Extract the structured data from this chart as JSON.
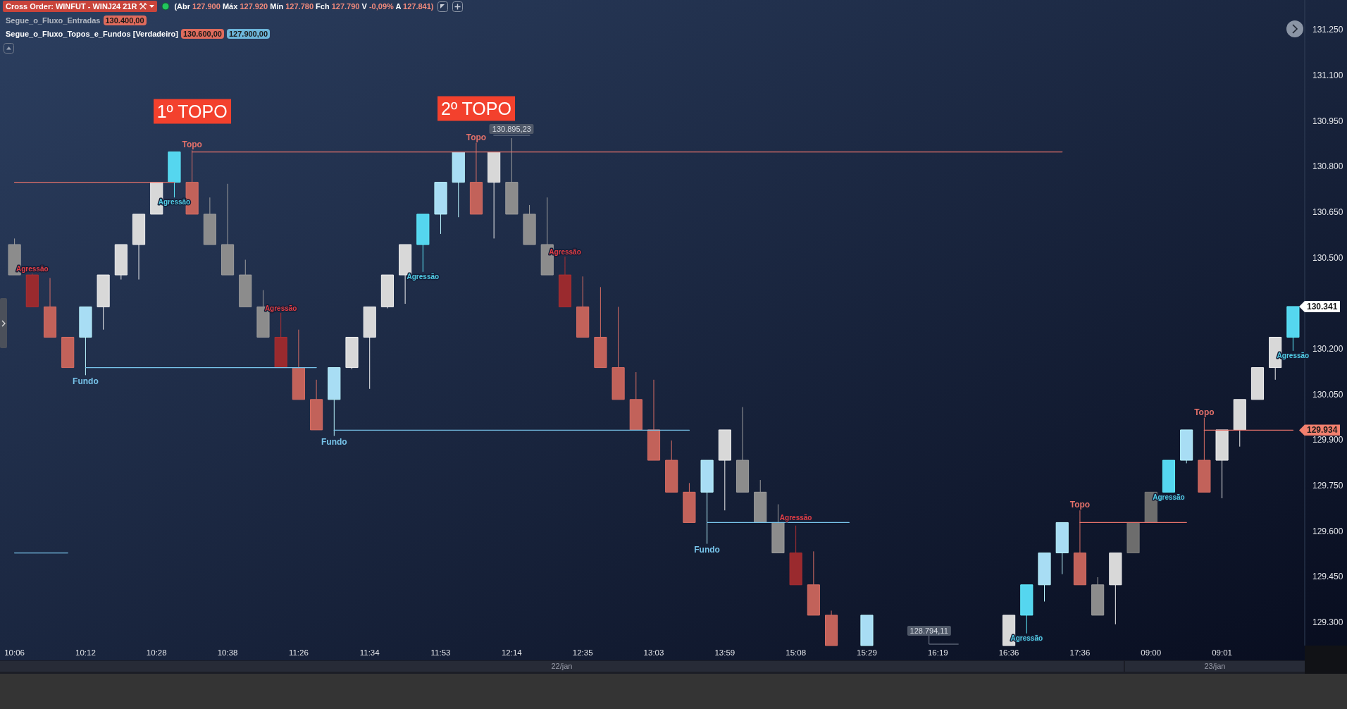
{
  "chart_data": {
    "type": "candlestick",
    "title": "Cross Order: WINFUT - WINJ24 21R",
    "subtitle": "(Abr 127.900 Máx 127.920 Mín 127.780 Fch 127.790 V -0,09% A 127.841)",
    "categories": [
      "10:06",
      null,
      null,
      null,
      "10:12",
      null,
      null,
      null,
      "10:28",
      null,
      null,
      null,
      "10:38",
      null,
      null,
      null,
      "11:26",
      null,
      null,
      null,
      "11:34",
      null,
      null,
      null,
      "11:53",
      null,
      null,
      null,
      "12:14",
      null,
      null,
      null,
      "12:35",
      null,
      null,
      null,
      "13:03",
      null,
      null,
      null,
      "13:59",
      null,
      null,
      null,
      "15:08",
      null,
      null,
      null,
      "15:29",
      null,
      null,
      null,
      "16:19",
      null,
      null,
      null,
      "16:36",
      null,
      null,
      null,
      "17:36",
      null,
      null,
      null,
      "09:00",
      null,
      null,
      null,
      "09:01",
      null,
      null,
      null,
      null
    ],
    "ohlc": [
      [
        130545,
        130565,
        130445,
        130445
      ],
      [
        130445,
        130450,
        130340,
        130340
      ],
      [
        130340,
        130435,
        130240,
        130240
      ],
      [
        130240,
        130240,
        130140,
        130140
      ],
      [
        130240,
        130340,
        130115,
        130340
      ],
      [
        130340,
        130445,
        130265,
        130445
      ],
      [
        130445,
        130545,
        130430,
        130545
      ],
      [
        130545,
        130645,
        130430,
        130645
      ],
      [
        130645,
        130750,
        130645,
        130750
      ],
      [
        130750,
        130850,
        130700,
        130850
      ],
      [
        130750,
        130855,
        130645,
        130645
      ],
      [
        130645,
        130700,
        130545,
        130545
      ],
      [
        130545,
        130745,
        130445,
        130445
      ],
      [
        130445,
        130495,
        130340,
        130340
      ],
      [
        130340,
        130395,
        130240,
        130240
      ],
      [
        130240,
        130320,
        130140,
        130140
      ],
      [
        130140,
        130265,
        130035,
        130035
      ],
      [
        130035,
        130100,
        129935,
        129935
      ],
      [
        130035,
        130140,
        129915,
        130140
      ],
      [
        130140,
        130240,
        130135,
        130240
      ],
      [
        130240,
        130340,
        130070,
        130340
      ],
      [
        130340,
        130445,
        130335,
        130445
      ],
      [
        130445,
        130545,
        130350,
        130545
      ],
      [
        130545,
        130645,
        130455,
        130645
      ],
      [
        130645,
        130750,
        130580,
        130750
      ],
      [
        130750,
        130850,
        130635,
        130850
      ],
      [
        130750,
        130880,
        130645,
        130645
      ],
      [
        130750,
        130850,
        130565,
        130850
      ],
      [
        130750,
        130895.23,
        130645,
        130645
      ],
      [
        130645,
        130675,
        130545,
        130545
      ],
      [
        130545,
        130700,
        130445,
        130445
      ],
      [
        130445,
        130505,
        130340,
        130340
      ],
      [
        130340,
        130440,
        130240,
        130240
      ],
      [
        130240,
        130405,
        130140,
        130140
      ],
      [
        130140,
        130340,
        130035,
        130035
      ],
      [
        130035,
        130125,
        129935,
        129935
      ],
      [
        129935,
        130100,
        129835,
        129835
      ],
      [
        129835,
        129900,
        129730,
        129730
      ],
      [
        129730,
        129760,
        129630,
        129630
      ],
      [
        129730,
        129835,
        129560,
        129835
      ],
      [
        129835,
        129935,
        129670,
        129935
      ],
      [
        129835,
        130010,
        129730,
        129730
      ],
      [
        129730,
        129770,
        129630,
        129630
      ],
      [
        129630,
        129690,
        129530,
        129530
      ],
      [
        129530,
        129620,
        129425,
        129425
      ],
      [
        129425,
        129535,
        129325,
        129325
      ],
      [
        129325,
        129340,
        129225,
        129225
      ],
      null,
      [
        129225,
        129325,
        129225,
        129325
      ],
      null,
      null,
      null,
      null,
      null,
      null,
      null,
      [
        129225,
        129325,
        129225,
        129325
      ],
      [
        129325,
        129425,
        129265,
        129425
      ],
      [
        129425,
        129530,
        129370,
        129530
      ],
      [
        129530,
        129630,
        129460,
        129630
      ],
      [
        129530,
        129670,
        129425,
        129425
      ],
      [
        129425,
        129450,
        129325,
        129325
      ],
      [
        129425,
        129530,
        129295,
        129530
      ],
      [
        129530,
        129630,
        129530,
        129630
      ],
      [
        129630,
        129730,
        129630,
        129730
      ],
      [
        129730,
        129835,
        129730,
        129835
      ],
      [
        129835,
        129935,
        129825,
        129935
      ],
      [
        129835,
        129975,
        129730,
        129730
      ],
      [
        129835,
        129935,
        129710,
        129935
      ],
      [
        129935,
        130035,
        129880,
        130035
      ],
      [
        130035,
        130140,
        130035,
        130140
      ],
      [
        130140,
        130240,
        130100,
        130240
      ],
      [
        130240,
        130341,
        130195,
        130341
      ]
    ],
    "colors": [
      "#8c8c8c",
      "#9a2a2e",
      "#c2625a",
      "#c2625a",
      "#a8ddf4",
      "#d8d8d8",
      "#d8d8d8",
      "#d8d8d8",
      "#d8d8d8",
      "#55d6ef",
      "#c2625a",
      "#8c8c8c",
      "#8c8c8c",
      "#8c8c8c",
      "#8c8c8c",
      "#9a2a2e",
      "#c2625a",
      "#c2625a",
      "#a8ddf4",
      "#d8d8d8",
      "#d8d8d8",
      "#d8d8d8",
      "#d8d8d8",
      "#55d6ef",
      "#a8ddf4",
      "#a8ddf4",
      "#c2625a",
      "#d8d8d8",
      "#8c8c8c",
      "#8c8c8c",
      "#8c8c8c",
      "#9a2a2e",
      "#c2625a",
      "#c2625a",
      "#c2625a",
      "#c2625a",
      "#c2625a",
      "#c2625a",
      "#c2625a",
      "#a8ddf4",
      "#d8d8d8",
      "#8c8c8c",
      "#8c8c8c",
      "#8c8c8c",
      "#9a2a2e",
      "#c2625a",
      "#c2625a",
      null,
      "#a8ddf4",
      null,
      null,
      null,
      null,
      null,
      null,
      null,
      "#d8d8d8",
      "#55d6ef",
      "#a8ddf4",
      "#a8ddf4",
      "#c2625a",
      "#8c8c8c",
      "#d8d8d8",
      "#6d6d6d",
      "#6d6d6d",
      "#55d6ef",
      "#a8ddf4",
      "#c2625a",
      "#d8d8d8",
      "#d8d8d8",
      "#d8d8d8",
      "#d8d8d8",
      "#55d6ef"
    ],
    "value_labels": [
      null,
      "Agressão",
      null,
      null,
      null,
      null,
      null,
      null,
      null,
      "Agressão",
      null,
      null,
      null,
      null,
      null,
      "Agressão",
      null,
      null,
      null,
      null,
      null,
      null,
      null,
      "Agressão",
      null,
      null,
      null,
      null,
      null,
      null,
      null,
      "Agressão",
      null,
      null,
      null,
      null,
      null,
      null,
      null,
      null,
      null,
      null,
      null,
      null,
      "Agressão",
      null,
      null,
      null,
      null,
      null,
      null,
      null,
      null,
      null,
      null,
      null,
      null,
      "Agressão",
      null,
      null,
      null,
      null,
      null,
      null,
      null,
      "Agressão",
      null,
      null,
      null,
      null,
      null,
      null,
      "Agressão"
    ],
    "series": [
      {
        "type": "line",
        "color": "#e4716a",
        "values": [
          130750,
          130750,
          130750,
          130750,
          130750,
          130750,
          130750,
          130750,
          130750,
          130750,
          null,
          null,
          null,
          null,
          null,
          null,
          null,
          null,
          null,
          null,
          null,
          null,
          null,
          null,
          null,
          null,
          null,
          null,
          null,
          null,
          null,
          null,
          null,
          null,
          null,
          null,
          null,
          null,
          null,
          null,
          null,
          null,
          null,
          null,
          null,
          null,
          null,
          null,
          null,
          null,
          null,
          null,
          null,
          null,
          null,
          null,
          null,
          null,
          null,
          null,
          null,
          null,
          null,
          null,
          null,
          null,
          null,
          null,
          null,
          null,
          null,
          null,
          null
        ]
      },
      {
        "type": "line",
        "color": "#78c4ea",
        "values": [
          129530,
          129530,
          129530,
          129530,
          null,
          null,
          null,
          null,
          null,
          null,
          null,
          null,
          null,
          null,
          null,
          null,
          null,
          null,
          null,
          null,
          null,
          null,
          null,
          null,
          null,
          null,
          null,
          null,
          null,
          null,
          null,
          null,
          null,
          null,
          null,
          null,
          null,
          null,
          null,
          null,
          null,
          null,
          null,
          null,
          null,
          null,
          null,
          null,
          null,
          null,
          null,
          null,
          null,
          null,
          null,
          null,
          null,
          null,
          null,
          null,
          null,
          null,
          null,
          null,
          null,
          null,
          null,
          null,
          null,
          null,
          null,
          null,
          null
        ]
      },
      {
        "type": "line",
        "name": "Topo",
        "color": "#e4716a",
        "values": [
          null,
          null,
          null,
          null,
          null,
          null,
          null,
          null,
          null,
          null,
          130850,
          130850,
          130850,
          130850,
          130850,
          130850,
          130850,
          130850,
          130850,
          130850,
          130850,
          130850,
          130850,
          130850,
          130850,
          130850,
          130850,
          null,
          null,
          null,
          null,
          null,
          null,
          null,
          null,
          null,
          null,
          null,
          null,
          null,
          null,
          null,
          null,
          null,
          null,
          null,
          null,
          null,
          null,
          null,
          null,
          null,
          null,
          null,
          null,
          null,
          null,
          null,
          null,
          null,
          null,
          null,
          null,
          null,
          null,
          null,
          null,
          null,
          null,
          null,
          null,
          null,
          null
        ]
      },
      {
        "type": "line",
        "name": "Topo",
        "color": "#e4716a",
        "values": [
          null,
          null,
          null,
          null,
          null,
          null,
          null,
          null,
          null,
          null,
          null,
          null,
          null,
          null,
          null,
          null,
          null,
          null,
          null,
          null,
          null,
          null,
          null,
          null,
          null,
          null,
          130850,
          130850,
          130850,
          130850,
          130850,
          130850,
          130850,
          130850,
          130850,
          130850,
          130850,
          130850,
          130850,
          130850,
          130850,
          130850,
          130850,
          130850,
          130850,
          130850,
          130850,
          130850,
          130850,
          130850,
          130850,
          130850,
          130850,
          130850,
          130850,
          130850,
          130850,
          130850,
          130850,
          130850,
          null,
          null,
          null,
          null,
          null,
          null,
          null,
          null,
          null,
          null,
          null,
          null,
          null
        ]
      },
      {
        "type": "line",
        "name": "Fundo",
        "color": "#78c4ea",
        "values": [
          null,
          null,
          null,
          null,
          130140,
          130140,
          130140,
          130140,
          130140,
          130140,
          130140,
          130140,
          130140,
          130140,
          130140,
          130140,
          130140,
          130140,
          null,
          null,
          null,
          null,
          null,
          null,
          null,
          null,
          null,
          null,
          null,
          null,
          null,
          null,
          null,
          null,
          null,
          null,
          null,
          null,
          null,
          null,
          null,
          null,
          null,
          null,
          null,
          null,
          null,
          null,
          null,
          null,
          null,
          null,
          null,
          null,
          null,
          null,
          null,
          null,
          null,
          null,
          null,
          null,
          null,
          null,
          null,
          null,
          null,
          null,
          null,
          null,
          null,
          null,
          null
        ]
      },
      {
        "type": "line",
        "name": "Fundo",
        "color": "#78c4ea",
        "values": [
          null,
          null,
          null,
          null,
          null,
          null,
          null,
          null,
          null,
          null,
          null,
          null,
          null,
          null,
          null,
          null,
          null,
          null,
          129934,
          129934,
          129934,
          129934,
          129934,
          129934,
          129934,
          129934,
          129934,
          129934,
          129934,
          129934,
          129934,
          129934,
          129934,
          129934,
          129934,
          129934,
          129934,
          129934,
          129934,
          null,
          null,
          null,
          null,
          null,
          null,
          null,
          null,
          null,
          null,
          null,
          null,
          null,
          null,
          null,
          null,
          null,
          null,
          null,
          null,
          null,
          null,
          null,
          null,
          null,
          null,
          null,
          null,
          null,
          null,
          null,
          null,
          null,
          null
        ]
      },
      {
        "type": "line",
        "name": "Fundo",
        "color": "#78c4ea",
        "values": [
          null,
          null,
          null,
          null,
          null,
          null,
          null,
          null,
          null,
          null,
          null,
          null,
          null,
          null,
          null,
          null,
          null,
          null,
          null,
          null,
          null,
          null,
          null,
          null,
          null,
          null,
          null,
          null,
          null,
          null,
          null,
          null,
          null,
          null,
          null,
          null,
          null,
          null,
          null,
          129630,
          129630,
          129630,
          129630,
          129630,
          129630,
          129630,
          129630,
          129630,
          null,
          null,
          null,
          null,
          null,
          null,
          null,
          null,
          null,
          null,
          null,
          null,
          null,
          null,
          null,
          null,
          null,
          null,
          null,
          null,
          null,
          null,
          null,
          null,
          null
        ]
      },
      {
        "type": "line",
        "name": "Topo",
        "color": "#e4716a",
        "values": [
          null,
          null,
          null,
          null,
          null,
          null,
          null,
          null,
          null,
          null,
          null,
          null,
          null,
          null,
          null,
          null,
          null,
          null,
          null,
          null,
          null,
          null,
          null,
          null,
          null,
          null,
          null,
          null,
          null,
          null,
          null,
          null,
          null,
          null,
          null,
          null,
          null,
          null,
          null,
          null,
          null,
          null,
          null,
          null,
          null,
          null,
          null,
          null,
          null,
          null,
          null,
          null,
          null,
          null,
          null,
          null,
          null,
          null,
          null,
          null,
          129630,
          129630,
          129630,
          129630,
          129630,
          129630,
          129630,
          null,
          null,
          null,
          null,
          null,
          null
        ]
      },
      {
        "type": "line",
        "name": "Topo",
        "color": "#e4716a",
        "values": [
          null,
          null,
          null,
          null,
          null,
          null,
          null,
          null,
          null,
          null,
          null,
          null,
          null,
          null,
          null,
          null,
          null,
          null,
          null,
          null,
          null,
          null,
          null,
          null,
          null,
          null,
          null,
          null,
          null,
          null,
          null,
          null,
          null,
          null,
          null,
          null,
          null,
          null,
          null,
          null,
          null,
          null,
          null,
          null,
          null,
          null,
          null,
          null,
          null,
          null,
          null,
          null,
          null,
          null,
          null,
          null,
          null,
          null,
          null,
          null,
          null,
          null,
          null,
          null,
          null,
          null,
          null,
          129934,
          129934,
          129934,
          129934,
          129934,
          129934
        ]
      }
    ],
    "ylim": [
      129225,
      131350
    ],
    "yticks": [
      {
        "value": 131250,
        "label": "131.250"
      },
      {
        "value": 131100,
        "label": "131.100"
      },
      {
        "value": 130950,
        "label": "130.950"
      },
      {
        "value": 130800,
        "label": "130.800"
      },
      {
        "value": 130650,
        "label": "130.650"
      },
      {
        "value": 130500,
        "label": "130.500"
      },
      {
        "value": 130200,
        "label": "130.200"
      },
      {
        "value": 130050,
        "label": "130.050"
      },
      {
        "value": 129900,
        "label": "129.900"
      },
      {
        "value": 129750,
        "label": "129.750"
      },
      {
        "value": 129600,
        "label": "129.600"
      },
      {
        "value": 129450,
        "label": "129.450"
      },
      {
        "value": 129300,
        "label": "129.300"
      }
    ],
    "annotations": [
      "Segue_o_Fluxo_Entradas",
      "130.400,00",
      "Segue_o_Fluxo_Topos_e_Fundos [Verdadeiro]",
      "130.600,00",
      "127.900,00",
      "1º TOPO",
      "2º TOPO",
      {
        "text": "130.895,23",
        "y": 130895.23
      },
      "128.794,11",
      "130.341",
      "129.934",
      "22/jan",
      "23/jan"
    ]
  }
}
